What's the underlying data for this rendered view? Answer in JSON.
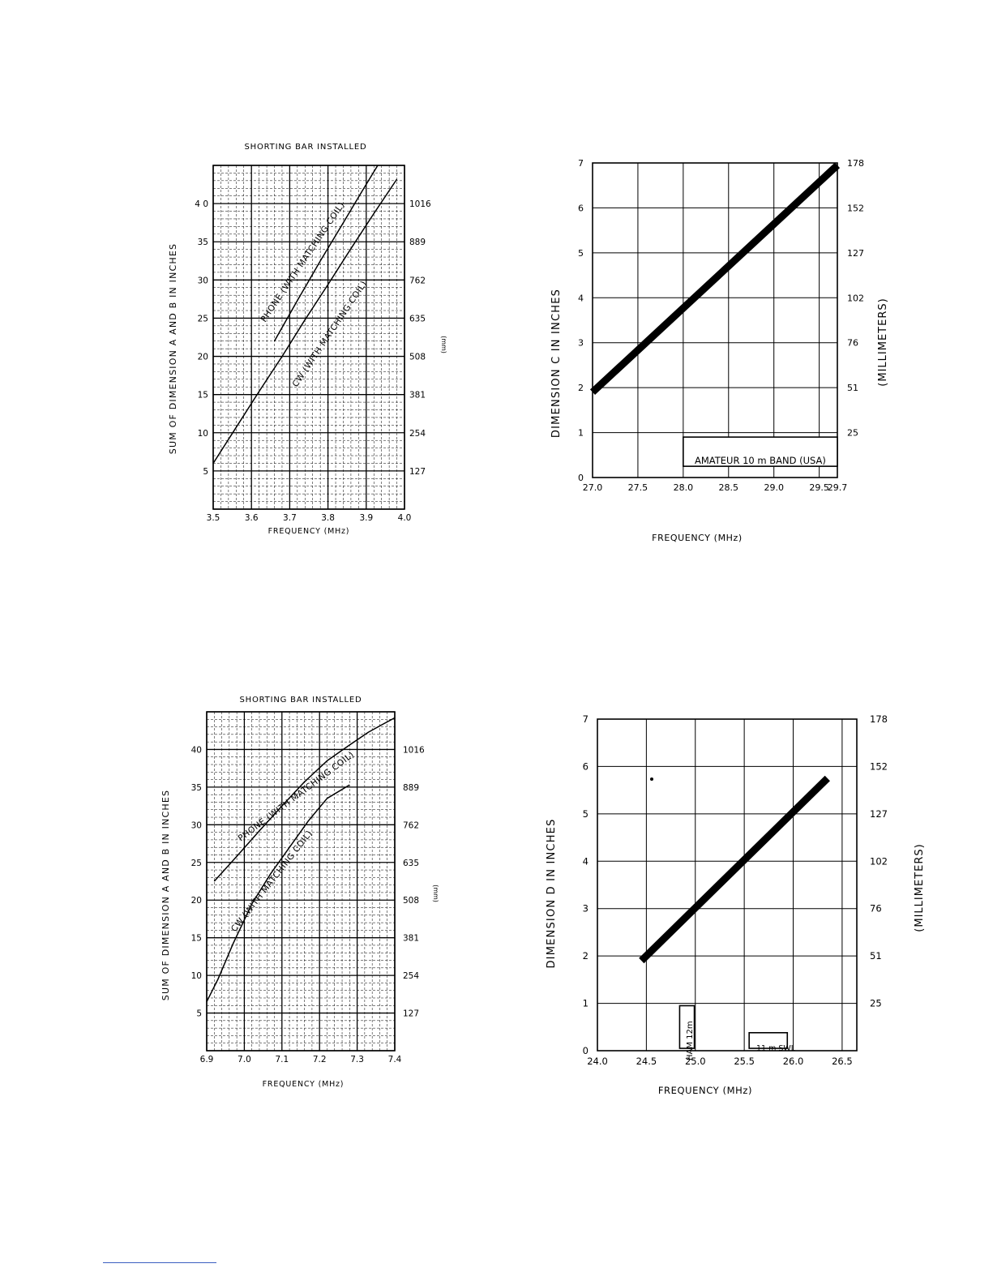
{
  "colors": {
    "ink": "#000000",
    "paper": "#ffffff",
    "footer_rule": "#3b5fc0"
  },
  "chart_data": [
    {
      "id": "chart1",
      "type": "line",
      "title": "SHORTING BAR INSTALLED",
      "xlabel": "FREQUENCY (MHz)",
      "ylabel": "SUM OF DIMENSION A AND B IN INCHES",
      "y2label": "(mm)",
      "xlim": [
        3.5,
        4.0
      ],
      "ylim": [
        0,
        45
      ],
      "grid": "fine",
      "xticks": [
        {
          "v": 3.5,
          "t": "3.5"
        },
        {
          "v": 3.6,
          "t": "3.6"
        },
        {
          "v": 3.7,
          "t": "3.7"
        },
        {
          "v": 3.8,
          "t": "3.8"
        },
        {
          "v": 3.9,
          "t": "3.9"
        },
        {
          "v": 4.0,
          "t": "4.0"
        }
      ],
      "yticks": [
        {
          "v": 5,
          "t": "5"
        },
        {
          "v": 10,
          "t": "10"
        },
        {
          "v": 15,
          "t": "15"
        },
        {
          "v": 20,
          "t": "20"
        },
        {
          "v": 25,
          "t": "25"
        },
        {
          "v": 30,
          "t": "30"
        },
        {
          "v": 35,
          "t": "35"
        },
        {
          "v": 40,
          "t": "4 0"
        }
      ],
      "y2ticks": [
        {
          "v": 5,
          "t": "127"
        },
        {
          "v": 10,
          "t": "254"
        },
        {
          "v": 15,
          "t": "381"
        },
        {
          "v": 20,
          "t": "508"
        },
        {
          "v": 25,
          "t": "635"
        },
        {
          "v": 30,
          "t": "762"
        },
        {
          "v": 35,
          "t": "889"
        },
        {
          "v": 40,
          "t": "1016"
        }
      ],
      "series": [
        {
          "name": "PHONE (WITH MATCHING COIL)",
          "x": [
            3.66,
            3.72,
            3.78,
            3.84,
            3.89,
            3.93
          ],
          "y": [
            22,
            27.3,
            32.5,
            37.5,
            41.7,
            45
          ]
        },
        {
          "name": "CW (WITH MATCHING COIL)",
          "x": [
            3.5,
            3.56,
            3.62,
            3.68,
            3.74,
            3.8,
            3.86,
            3.92,
            3.98
          ],
          "y": [
            6,
            10.7,
            15.4,
            20,
            24.8,
            29.4,
            34.1,
            38.7,
            43.2
          ]
        }
      ]
    },
    {
      "id": "chart2",
      "type": "line",
      "title": "",
      "xlabel": "FREQUENCY (MHz)",
      "ylabel": "DIMENSION C IN INCHES",
      "y2label": "(MILLIMETERS)",
      "xlim": [
        27.0,
        29.7
      ],
      "ylim": [
        0,
        7
      ],
      "xticks": [
        {
          "v": 27.0,
          "t": "27.0"
        },
        {
          "v": 27.5,
          "t": "27.5"
        },
        {
          "v": 28.0,
          "t": "28.0"
        },
        {
          "v": 28.5,
          "t": "28.5"
        },
        {
          "v": 29.0,
          "t": "29.0"
        },
        {
          "v": 29.5,
          "t": "29.5"
        },
        {
          "v": 29.7,
          "t": "29.7"
        }
      ],
      "yticks": [
        {
          "v": 0,
          "t": "0"
        },
        {
          "v": 1,
          "t": "1"
        },
        {
          "v": 2,
          "t": "2"
        },
        {
          "v": 3,
          "t": "3"
        },
        {
          "v": 4,
          "t": "4"
        },
        {
          "v": 5,
          "t": "5"
        },
        {
          "v": 6,
          "t": "6"
        },
        {
          "v": 7,
          "t": "7"
        }
      ],
      "y2ticks": [
        {
          "v": 1,
          "t": "25"
        },
        {
          "v": 2,
          "t": "51"
        },
        {
          "v": 3,
          "t": "76"
        },
        {
          "v": 4,
          "t": "102"
        },
        {
          "v": 5,
          "t": "127"
        },
        {
          "v": 6,
          "t": "152"
        },
        {
          "v": 7,
          "t": "178"
        }
      ],
      "series": [
        {
          "x": [
            27.0,
            29.7
          ],
          "y": [
            1.9,
            6.95
          ]
        }
      ],
      "band": {
        "label": "AMATEUR 10 m BAND (USA)",
        "x0": 28.0,
        "x1": 29.7,
        "y0": 0.25,
        "y1": 0.9
      }
    },
    {
      "id": "chart3",
      "type": "line",
      "title": "SHORTING BAR INSTALLED",
      "xlabel": "FREQUENCY (MHz)",
      "ylabel": "SUM OF DIMENSION A AND B IN INCHES",
      "y2label": "(mm)",
      "xlim": [
        6.9,
        7.4
      ],
      "ylim": [
        0,
        45
      ],
      "grid": "fine",
      "xticks": [
        {
          "v": 6.9,
          "t": "6.9"
        },
        {
          "v": 7.0,
          "t": "7.0"
        },
        {
          "v": 7.1,
          "t": "7.1"
        },
        {
          "v": 7.2,
          "t": "7.2"
        },
        {
          "v": 7.3,
          "t": "7.3"
        },
        {
          "v": 7.4,
          "t": "7.4"
        }
      ],
      "yticks": [
        {
          "v": 5,
          "t": "5"
        },
        {
          "v": 10,
          "t": "10"
        },
        {
          "v": 15,
          "t": "15"
        },
        {
          "v": 20,
          "t": "20"
        },
        {
          "v": 25,
          "t": "25"
        },
        {
          "v": 30,
          "t": "30"
        },
        {
          "v": 35,
          "t": "35"
        },
        {
          "v": 40,
          "t": "40"
        }
      ],
      "y2ticks": [
        {
          "v": 5,
          "t": "127"
        },
        {
          "v": 10,
          "t": "254"
        },
        {
          "v": 15,
          "t": "381"
        },
        {
          "v": 20,
          "t": "508"
        },
        {
          "v": 25,
          "t": "635"
        },
        {
          "v": 30,
          "t": "762"
        },
        {
          "v": 35,
          "t": "889"
        },
        {
          "v": 40,
          "t": "1016"
        }
      ],
      "series": [
        {
          "name": "PHONE (WITH MATCHING COIL)",
          "x": [
            6.92,
            6.98,
            7.04,
            7.1,
            7.16,
            7.22,
            7.28,
            7.33,
            7.37,
            7.4
          ],
          "y": [
            22.5,
            25.8,
            29.2,
            32.5,
            35.7,
            38.5,
            40.6,
            42.3,
            43.4,
            44.2
          ]
        },
        {
          "name": "CW (WITH MATCHING COIL)",
          "x": [
            6.9,
            6.93,
            6.97,
            7.02,
            7.07,
            7.12,
            7.17,
            7.22,
            7.28
          ],
          "y": [
            6.5,
            9.5,
            14.2,
            19.5,
            23.5,
            27.0,
            30.5,
            33.5,
            35.3
          ]
        }
      ]
    },
    {
      "id": "chart4",
      "type": "line",
      "title": "",
      "xlabel": "FREQUENCY (MHz)",
      "ylabel": "DIMENSION D IN INCHES",
      "y2label": "(MILLIMETERS)",
      "xlim": [
        24.0,
        26.65
      ],
      "ylim": [
        0,
        7
      ],
      "xticks": [
        {
          "v": 24.0,
          "t": "24.0"
        },
        {
          "v": 24.5,
          "t": "24.5"
        },
        {
          "v": 25.0,
          "t": "25.0"
        },
        {
          "v": 25.5,
          "t": "25.5"
        },
        {
          "v": 26.0,
          "t": "26.0"
        },
        {
          "v": 26.5,
          "t": "26.5"
        }
      ],
      "yticks": [
        {
          "v": 0,
          "t": "0"
        },
        {
          "v": 1,
          "t": "1"
        },
        {
          "v": 2,
          "t": "2"
        },
        {
          "v": 3,
          "t": "3"
        },
        {
          "v": 4,
          "t": "4"
        },
        {
          "v": 5,
          "t": "5"
        },
        {
          "v": 6,
          "t": "6"
        },
        {
          "v": 7,
          "t": "7"
        }
      ],
      "y2ticks": [
        {
          "v": 1,
          "t": "25"
        },
        {
          "v": 2,
          "t": "51"
        },
        {
          "v": 3,
          "t": "76"
        },
        {
          "v": 4,
          "t": "102"
        },
        {
          "v": 5,
          "t": "127"
        },
        {
          "v": 6,
          "t": "152"
        },
        {
          "v": 7,
          "t": "178"
        }
      ],
      "series": [
        {
          "x": [
            24.45,
            26.35
          ],
          "y": [
            1.9,
            5.75
          ]
        }
      ],
      "band": {
        "label": "HAM 12m",
        "x0": 24.84,
        "x1": 24.99,
        "y0": 0.05,
        "y1": 0.95,
        "vertical": true
      },
      "band2": {
        "label": "11 m SWL",
        "x0": 25.55,
        "x1": 25.94,
        "y0": 0.05,
        "y1": 0.38
      }
    }
  ]
}
